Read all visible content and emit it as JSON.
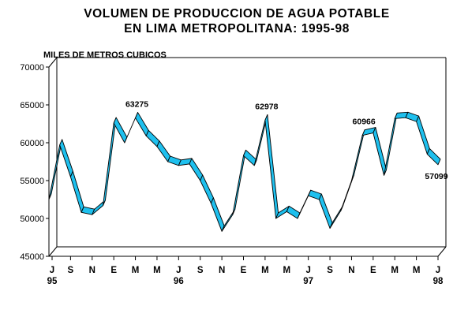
{
  "chart_data": {
    "type": "line",
    "title": [
      "VOLUMEN DE PRODUCCION DE AGUA POTABLE",
      "EN LIMA METROPOLITANA: 1995-98"
    ],
    "ylabel": "MILES DE METROS CUBICOS",
    "xlabel": "",
    "ylim": [
      45000,
      70000
    ],
    "yticks": [
      "45000",
      "50000",
      "55000",
      "60000",
      "65000",
      "70000"
    ],
    "x_ticks": [
      {
        "month": "J",
        "year": "95",
        "index": 0
      },
      {
        "month": "S",
        "year": "",
        "index": 2
      },
      {
        "month": "N",
        "year": "",
        "index": 4
      },
      {
        "month": "E",
        "year": "",
        "index": 6
      },
      {
        "month": "M",
        "year": "",
        "index": 8
      },
      {
        "month": "M",
        "year": "",
        "index": 10
      },
      {
        "month": "J",
        "year": "96",
        "index": 12
      },
      {
        "month": "S",
        "year": "",
        "index": 14
      },
      {
        "month": "N",
        "year": "",
        "index": 16
      },
      {
        "month": "E",
        "year": "",
        "index": 18
      },
      {
        "month": "M",
        "year": "",
        "index": 20
      },
      {
        "month": "M",
        "year": "",
        "index": 22
      },
      {
        "month": "J",
        "year": "97",
        "index": 24
      },
      {
        "month": "S",
        "year": "",
        "index": 26
      },
      {
        "month": "N",
        "year": "",
        "index": 28
      },
      {
        "month": "E",
        "year": "",
        "index": 30
      },
      {
        "month": "M",
        "year": "",
        "index": 32
      },
      {
        "month": "M",
        "year": "",
        "index": 34
      },
      {
        "month": "J",
        "year": "98",
        "index": 36
      }
    ],
    "series": [
      {
        "color": "#1ec0ee",
        "values": [
          52500,
          59700,
          55500,
          50800,
          50500,
          51700,
          62600,
          60000,
          63275,
          60900,
          59500,
          57500,
          57000,
          57200,
          55000,
          52000,
          48300,
          50500,
          58300,
          57000,
          62978,
          50000,
          50900,
          50000,
          53000,
          52500,
          48700,
          51000,
          55000,
          60966,
          61300,
          55700,
          63200,
          63300,
          62800,
          58500,
          57099
        ]
      }
    ],
    "annotations": [
      {
        "text": "63275",
        "index": 8
      },
      {
        "text": "62978",
        "index": 20
      },
      {
        "text": "60966",
        "index": 29
      },
      {
        "text": "57099",
        "index": 36
      }
    ],
    "grid": false,
    "legend": "none"
  }
}
